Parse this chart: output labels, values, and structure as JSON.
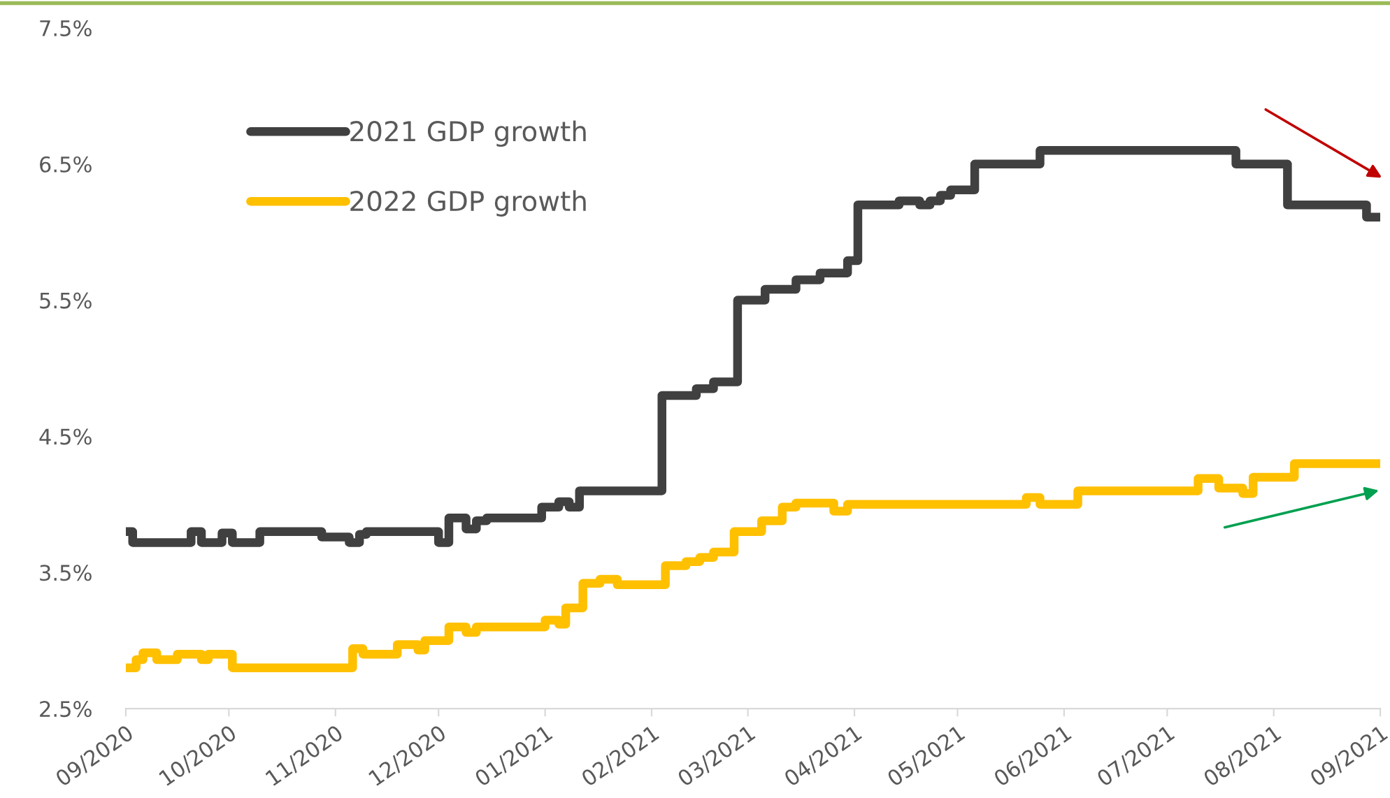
{
  "chart_data": {
    "type": "step",
    "series": [
      {
        "name": "2021 GDP growth",
        "color": "#404040",
        "x": [
          "2020-09-01",
          "2020-09-03",
          "2020-09-20",
          "2020-09-23",
          "2020-09-29",
          "2020-10-02",
          "2020-10-10",
          "2020-10-28",
          "2020-11-05",
          "2020-11-08",
          "2020-11-10",
          "2020-12-01",
          "2020-12-04",
          "2020-12-09",
          "2020-12-12",
          "2020-12-15",
          "2020-12-31",
          "2021-01-05",
          "2021-01-08",
          "2021-01-11",
          "2021-02-04",
          "2021-02-14",
          "2021-02-19",
          "2021-02-26",
          "2021-03-06",
          "2021-03-15",
          "2021-03-22",
          "2021-03-30",
          "2021-04-02",
          "2021-04-14",
          "2021-04-20",
          "2021-04-23",
          "2021-04-26",
          "2021-04-29",
          "2021-05-06",
          "2021-05-25",
          "2021-07-21",
          "2021-08-05",
          "2021-08-28",
          "2021-09-01"
        ],
        "values": [
          3.8,
          3.72,
          3.8,
          3.72,
          3.79,
          3.72,
          3.8,
          3.76,
          3.72,
          3.78,
          3.8,
          3.72,
          3.9,
          3.82,
          3.88,
          3.9,
          3.98,
          4.02,
          3.98,
          4.1,
          4.8,
          4.85,
          4.9,
          5.5,
          5.58,
          5.65,
          5.7,
          5.79,
          6.2,
          6.23,
          6.2,
          6.23,
          6.27,
          6.31,
          6.5,
          6.6,
          6.5,
          6.2,
          6.11,
          6.11
        ]
      },
      {
        "name": "2022 GDP growth",
        "color": "#ffc000",
        "x": [
          "2020-09-01",
          "2020-09-04",
          "2020-09-06",
          "2020-09-10",
          "2020-09-16",
          "2020-09-23",
          "2020-09-25",
          "2020-10-02",
          "2020-11-06",
          "2020-11-09",
          "2020-11-19",
          "2020-11-25",
          "2020-11-27",
          "2020-12-04",
          "2020-12-09",
          "2020-12-12",
          "2021-01-01",
          "2021-01-05",
          "2021-01-07",
          "2021-01-12",
          "2021-01-17",
          "2021-01-22",
          "2021-02-05",
          "2021-02-11",
          "2021-02-15",
          "2021-02-19",
          "2021-02-25",
          "2021-03-05",
          "2021-03-11",
          "2021-03-15",
          "2021-03-26",
          "2021-03-30",
          "2021-05-21",
          "2021-05-25",
          "2021-06-05",
          "2021-07-10",
          "2021-07-16",
          "2021-07-23",
          "2021-07-26",
          "2021-08-07",
          "2021-09-01"
        ],
        "values": [
          2.8,
          2.86,
          2.91,
          2.86,
          2.9,
          2.86,
          2.9,
          2.8,
          2.94,
          2.9,
          2.97,
          2.93,
          3.0,
          3.1,
          3.06,
          3.1,
          3.15,
          3.12,
          3.24,
          3.42,
          3.45,
          3.41,
          3.55,
          3.58,
          3.61,
          3.65,
          3.8,
          3.88,
          3.98,
          4.01,
          3.95,
          4.0,
          4.05,
          4.0,
          4.1,
          4.19,
          4.12,
          4.08,
          4.2,
          4.3,
          4.3
        ]
      }
    ],
    "xlim": [
      "2020-09-01",
      "2021-09-01"
    ],
    "xticks": [
      {
        "value": "2020-09-01",
        "label": "09/2020"
      },
      {
        "value": "2020-10-01",
        "label": "10/2020"
      },
      {
        "value": "2020-11-01",
        "label": "11/2020"
      },
      {
        "value": "2020-12-01",
        "label": "12/2020"
      },
      {
        "value": "2021-01-01",
        "label": "01/2021"
      },
      {
        "value": "2021-02-01",
        "label": "02/2021"
      },
      {
        "value": "2021-03-01",
        "label": "03/2021"
      },
      {
        "value": "2021-04-01",
        "label": "04/2021"
      },
      {
        "value": "2021-05-01",
        "label": "05/2021"
      },
      {
        "value": "2021-06-01",
        "label": "06/2021"
      },
      {
        "value": "2021-07-01",
        "label": "07/2021"
      },
      {
        "value": "2021-08-01",
        "label": "08/2021"
      },
      {
        "value": "2021-09-01",
        "label": "09/2021"
      }
    ],
    "ylim": [
      2.5,
      7.5
    ],
    "yticks": [
      {
        "value": 2.5,
        "label": "2.5%"
      },
      {
        "value": 3.5,
        "label": "3.5%"
      },
      {
        "value": 4.5,
        "label": "4.5%"
      },
      {
        "value": 5.5,
        "label": "5.5%"
      },
      {
        "value": 6.5,
        "label": "6.5%"
      },
      {
        "value": 7.5,
        "label": "7.5%"
      }
    ],
    "legend": "top left"
  }
}
